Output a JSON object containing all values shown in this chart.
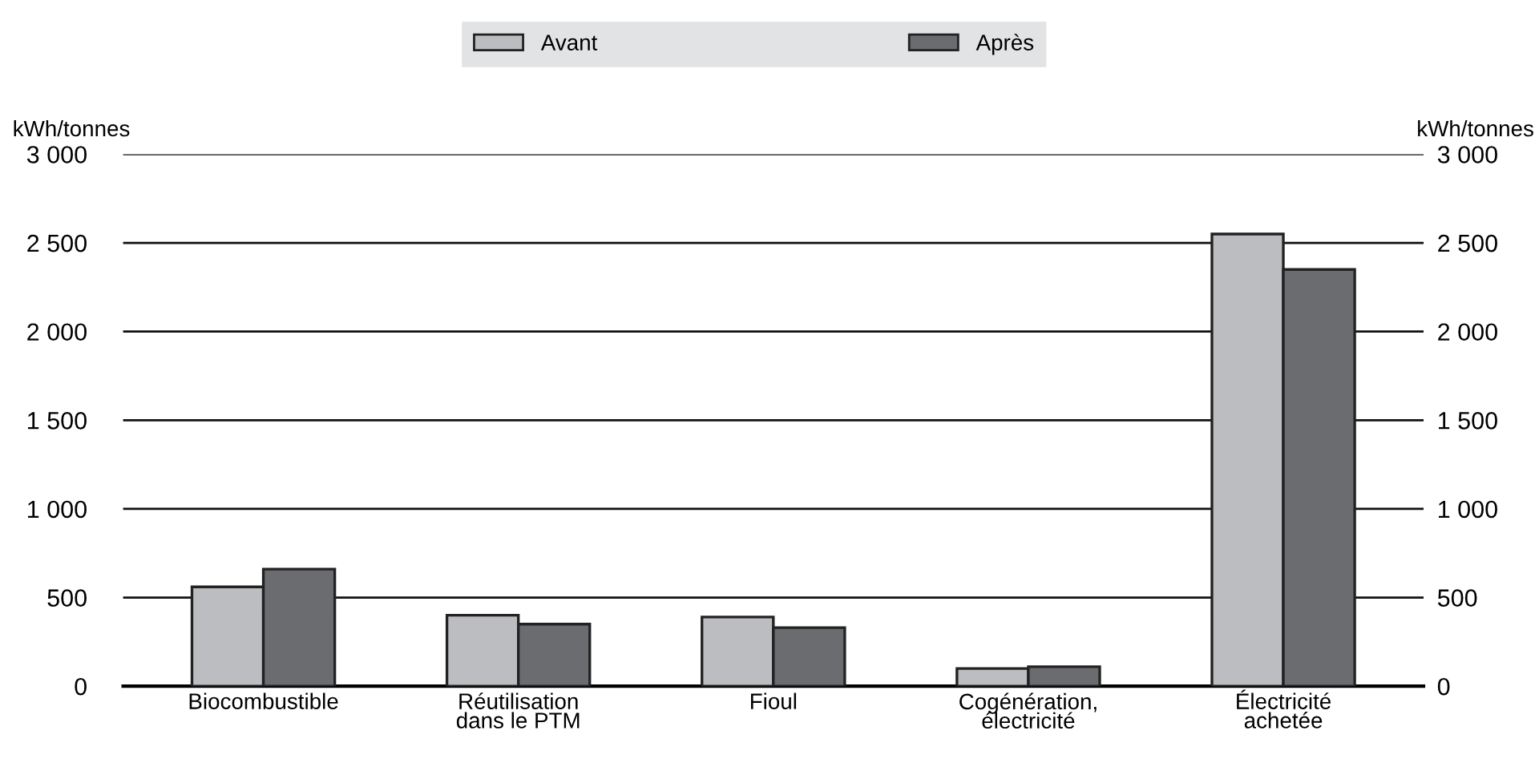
{
  "chart_data": {
    "type": "bar",
    "ylabel": "kWh/tonnes",
    "y2label": "kWh/tonnes",
    "categories": [
      "Biocombustible",
      "Réutilisation\ndans le PTM",
      "Fioul",
      "Cogénération,\nélectricité",
      "Électricité\nachetée"
    ],
    "series": [
      {
        "name": "Avant",
        "color": "#bcbdc0",
        "values": [
          560,
          400,
          390,
          100,
          2550
        ]
      },
      {
        "name": "Après",
        "color": "#6b6c70",
        "values": [
          660,
          350,
          330,
          110,
          2350
        ]
      }
    ],
    "ylim": [
      0,
      3000
    ],
    "yticks": [
      0,
      500,
      {
        "value": 1000,
        "label": "1 000"
      },
      {
        "value": 1500,
        "label": "1 500"
      },
      {
        "value": 2000,
        "label": "2 000"
      },
      {
        "value": 2500,
        "label": "2 500"
      },
      {
        "value": 3000,
        "label": "3 000"
      }
    ],
    "y2lim": [
      0,
      3000
    ],
    "y2ticks": [
      0,
      500,
      {
        "value": 1000,
        "label": "1 000"
      },
      {
        "value": 1500,
        "label": "1 500"
      },
      {
        "value": 2000,
        "label": "2 000"
      },
      {
        "value": 2500,
        "label": "2 500"
      },
      {
        "value": 3000,
        "label": "3 000"
      }
    ],
    "grid": "y",
    "legend": "top"
  }
}
